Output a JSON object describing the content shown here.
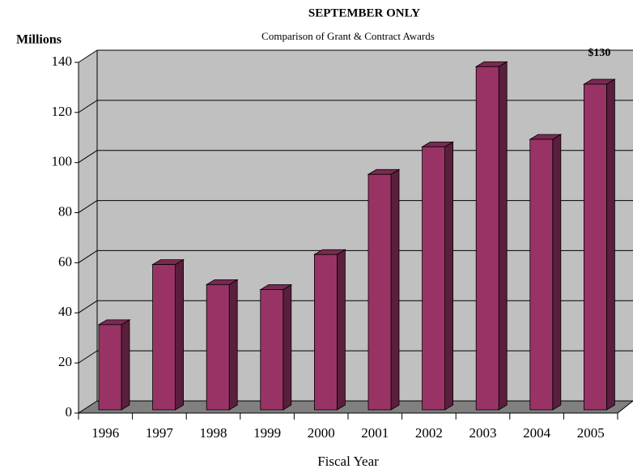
{
  "chart_data": {
    "type": "bar3d",
    "title": "SEPTEMBER ONLY",
    "subtitle": "Comparison of Grant & Contract Awards",
    "y_label": "Millions",
    "x_label": "Fiscal Year",
    "categories": [
      "1996",
      "1997",
      "1998",
      "1999",
      "2000",
      "2001",
      "2002",
      "2003",
      "2004",
      "2005"
    ],
    "values": [
      34,
      58,
      50,
      48,
      62,
      94,
      105,
      137,
      108,
      130
    ],
    "value_labels": [
      null,
      null,
      null,
      null,
      null,
      null,
      null,
      null,
      null,
      "$130"
    ],
    "color": "#993366",
    "ylim": [
      0,
      140
    ],
    "yticks": [
      0,
      20,
      40,
      60,
      80,
      100,
      120,
      140
    ],
    "grid": true
  }
}
